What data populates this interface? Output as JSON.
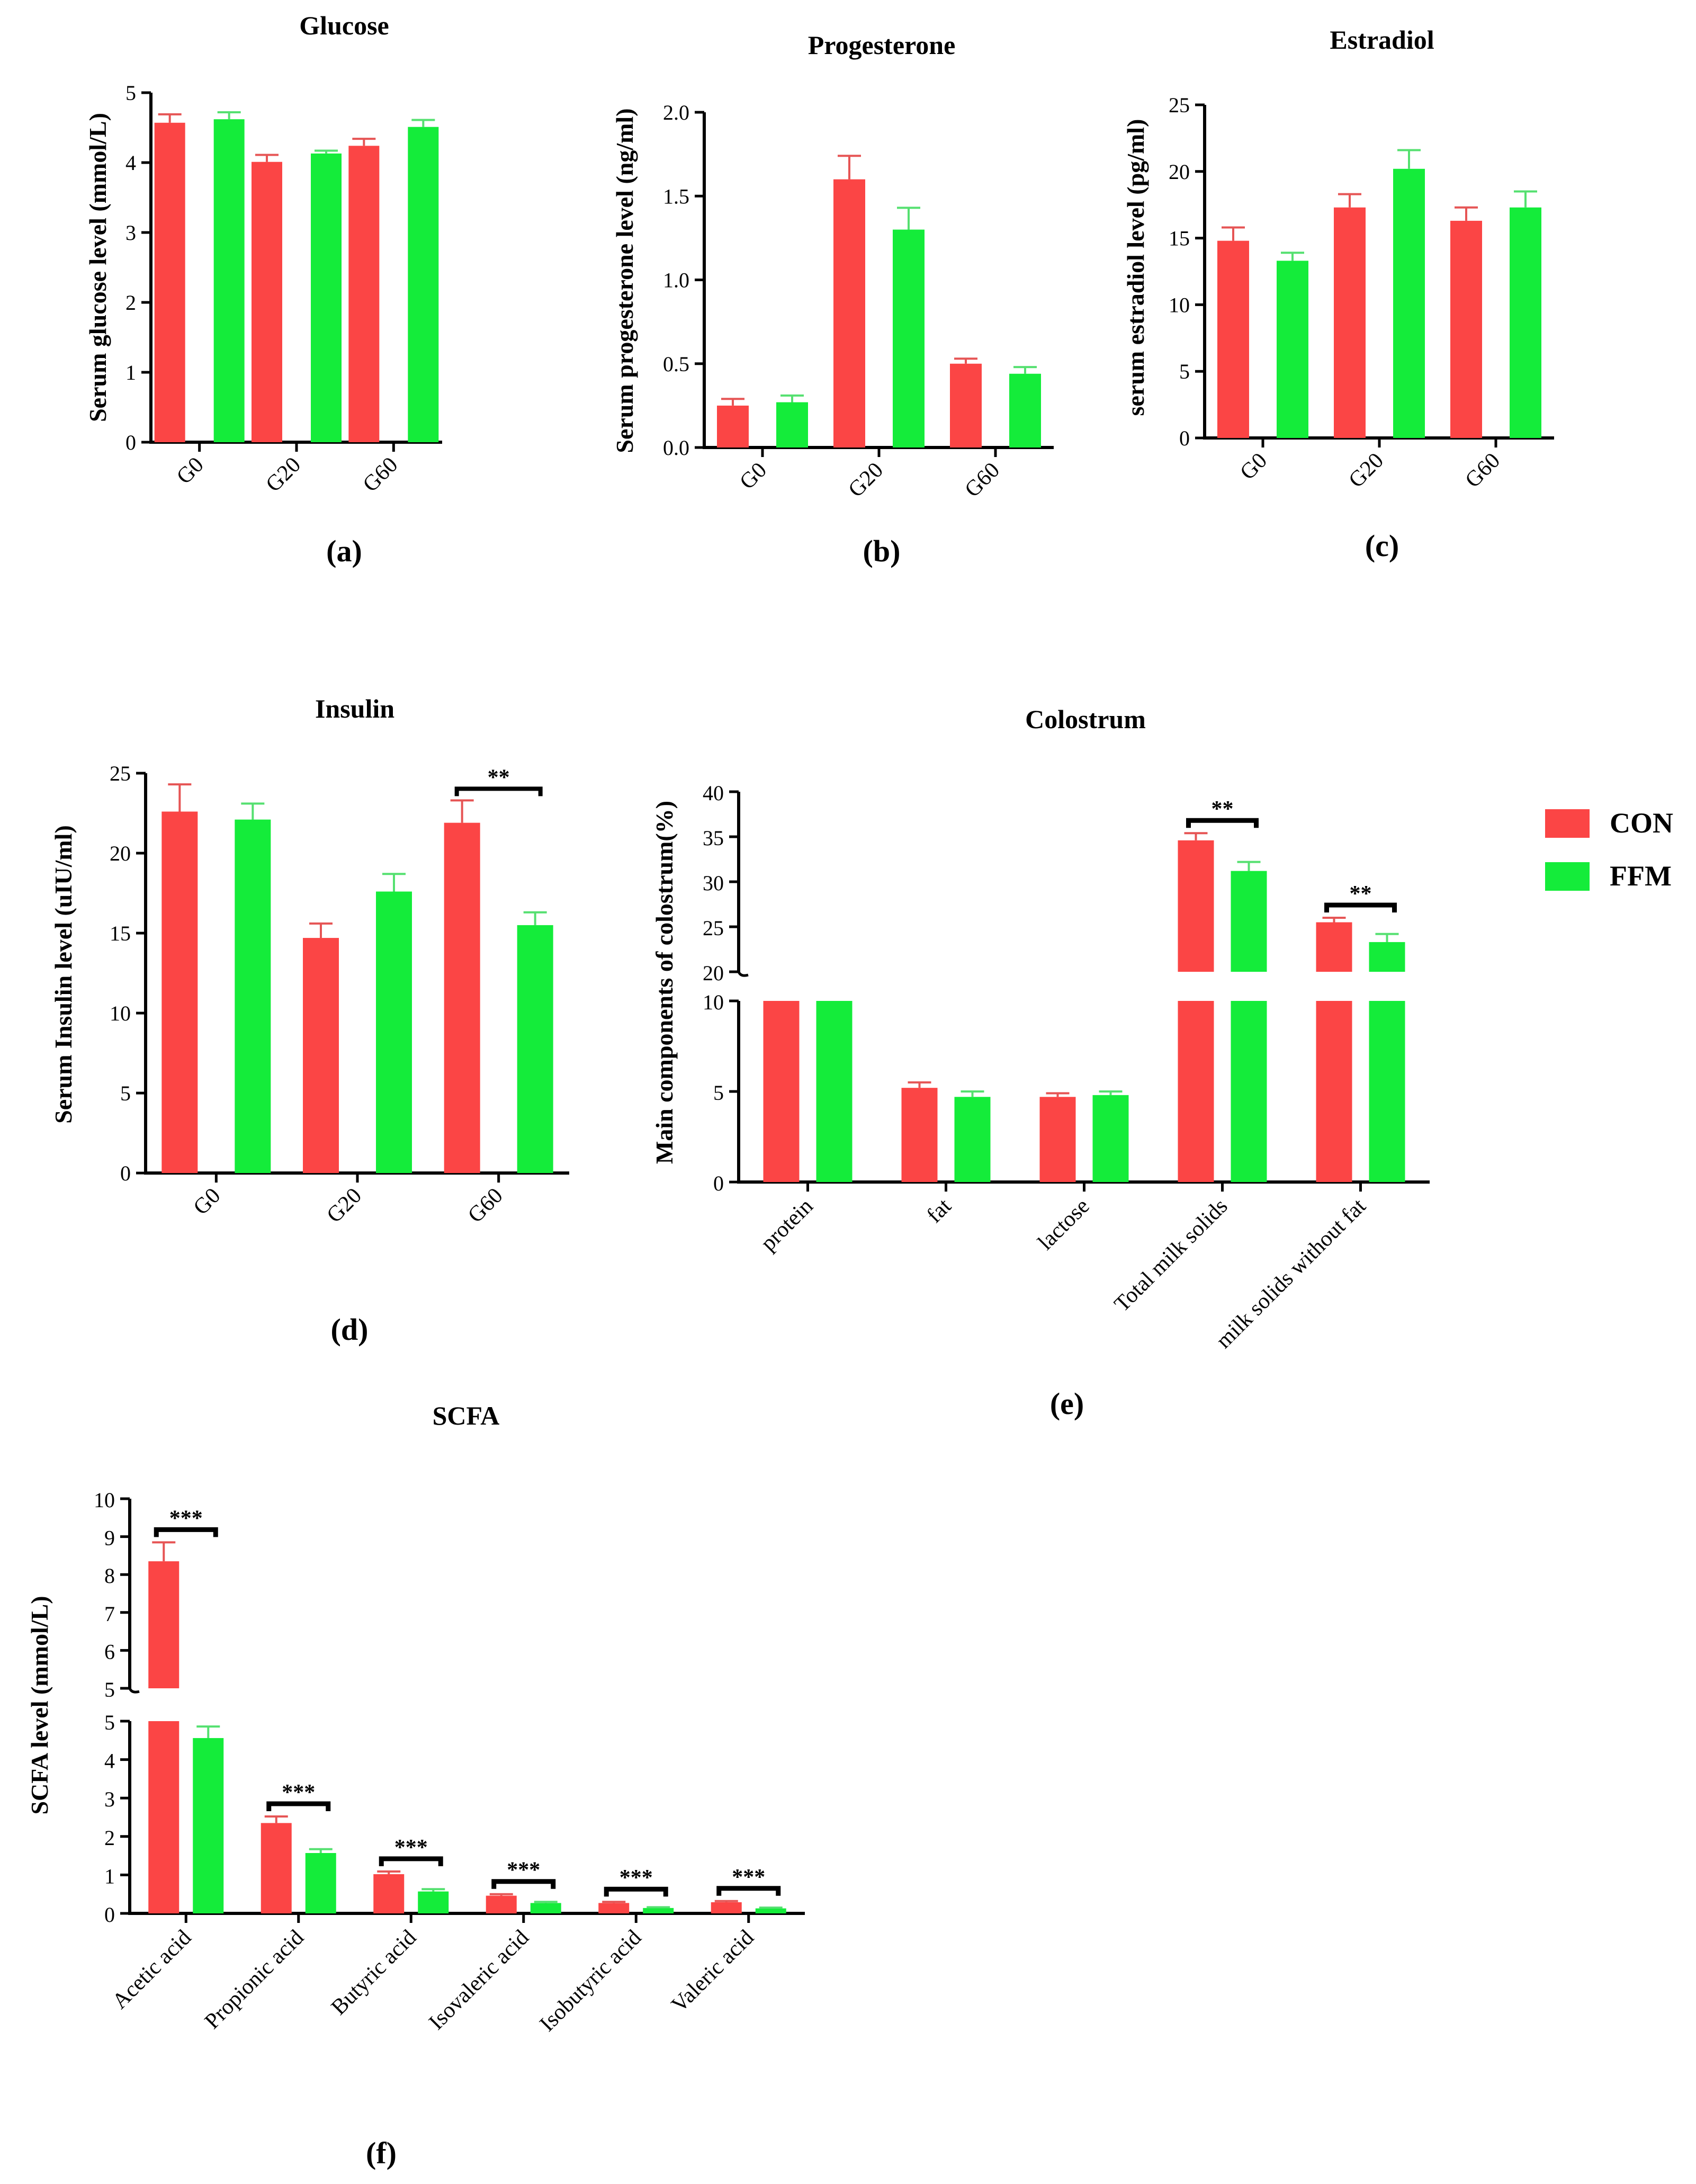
{
  "colors": {
    "con": "#fb4545",
    "ffm": "#14ec3a",
    "con_err": "#e65555",
    "ffm_err": "#55e070",
    "axis": "#000000"
  },
  "legend": [
    {
      "label": "CON"
    },
    {
      "label": "FFM"
    }
  ],
  "chart_data": [
    {
      "id": "a",
      "type": "bar",
      "title": "Glucose",
      "panel_label": "(a)",
      "ylabel": "Serum glucose level (mmol/L)",
      "xlabel": "",
      "categories": [
        "G0",
        "G20",
        "G60"
      ],
      "yticks": [
        "0",
        "1",
        "2",
        "3",
        "4",
        "5"
      ],
      "ylim": [
        0,
        5
      ],
      "series": [
        {
          "name": "CON",
          "values": [
            4.57,
            4.01,
            4.24
          ],
          "errors": [
            0.12,
            0.1,
            0.1
          ]
        },
        {
          "name": "FFM",
          "values": [
            4.62,
            4.13,
            4.51
          ],
          "errors": [
            0.1,
            0.04,
            0.1
          ]
        }
      ],
      "significance": []
    },
    {
      "id": "b",
      "type": "bar",
      "title": "Progesterone",
      "panel_label": "(b)",
      "ylabel": "Serum progesterone level (ng/ml)",
      "xlabel": "",
      "categories": [
        "G0",
        "G20",
        "G60"
      ],
      "yticks": [
        "0.0",
        "0.5",
        "1.0",
        "1.5",
        "2.0"
      ],
      "ylim": [
        0,
        2
      ],
      "series": [
        {
          "name": "CON",
          "values": [
            0.25,
            1.6,
            0.5
          ],
          "errors": [
            0.04,
            0.14,
            0.03
          ]
        },
        {
          "name": "FFM",
          "values": [
            0.27,
            1.3,
            0.44
          ],
          "errors": [
            0.04,
            0.13,
            0.04
          ]
        }
      ],
      "significance": []
    },
    {
      "id": "c",
      "type": "bar",
      "title": "Estradiol",
      "panel_label": "(c)",
      "ylabel": "serum estradiol level (pg/ml)",
      "xlabel": "",
      "categories": [
        "G0",
        "G20",
        "G60"
      ],
      "yticks": [
        "0",
        "5",
        "10",
        "15",
        "20",
        "25"
      ],
      "ylim": [
        0,
        25
      ],
      "series": [
        {
          "name": "CON",
          "values": [
            14.8,
            17.3,
            16.3
          ],
          "errors": [
            1.0,
            1.0,
            1.0
          ]
        },
        {
          "name": "FFM",
          "values": [
            13.3,
            20.2,
            17.3
          ],
          "errors": [
            0.6,
            1.4,
            1.2
          ]
        }
      ],
      "significance": []
    },
    {
      "id": "d",
      "type": "bar",
      "title": "Insulin",
      "panel_label": "(d)",
      "ylabel": "Serum Insulin level (uIU/ml)",
      "xlabel": "",
      "categories": [
        "G0",
        "G20",
        "G60"
      ],
      "yticks": [
        "0",
        "5",
        "10",
        "15",
        "20",
        "25"
      ],
      "ylim": [
        0,
        25
      ],
      "series": [
        {
          "name": "CON",
          "values": [
            22.6,
            14.7,
            21.9
          ],
          "errors": [
            1.7,
            0.9,
            1.4
          ]
        },
        {
          "name": "FFM",
          "values": [
            22.1,
            17.6,
            15.5
          ],
          "errors": [
            1.0,
            1.1,
            0.8
          ]
        }
      ],
      "significance": [
        {
          "category": "G60",
          "label": "**"
        }
      ]
    },
    {
      "id": "e",
      "type": "bar",
      "title": "Colostrum",
      "panel_label": "(e)",
      "ylabel": "Main components of colostrum(%)",
      "xlabel": "",
      "categories": [
        "protein",
        "fat",
        "lactose",
        "Total milk solids",
        "milk solids without fat"
      ],
      "yticks_lower": [
        "0",
        "5",
        "10"
      ],
      "yticks_upper": [
        "20",
        "25",
        "30",
        "35",
        "40"
      ],
      "axis_break": {
        "lower_range": [
          0,
          10
        ],
        "upper_range": [
          20,
          40
        ]
      },
      "series": [
        {
          "name": "CON",
          "values": [
            10,
            5.2,
            4.7,
            34.6,
            25.5
          ],
          "errors": [
            0,
            0.3,
            0.2,
            0.8,
            0.5
          ]
        },
        {
          "name": "FFM",
          "values": [
            10,
            4.7,
            4.8,
            31.2,
            23.3
          ],
          "errors": [
            0,
            0.3,
            0.2,
            1.0,
            0.9
          ]
        }
      ],
      "significance": [
        {
          "category": "Total milk solids",
          "label": "**"
        },
        {
          "category": "milk solids without fat",
          "label": "**"
        }
      ]
    },
    {
      "id": "f",
      "type": "bar",
      "title": "SCFA",
      "panel_label": "(f)",
      "ylabel": "SCFA level (mmol/L)",
      "xlabel": "",
      "categories": [
        "Acetic acid",
        "Propionic acid",
        "Butyric acid",
        "Isovaleric acid",
        "Isobutyric acid",
        "Valeric acid"
      ],
      "yticks_lower": [
        "0",
        "1",
        "2",
        "3",
        "4",
        "5"
      ],
      "yticks_upper": [
        "5",
        "6",
        "7",
        "8",
        "9",
        "10"
      ],
      "axis_break": {
        "lower_range": [
          0,
          5
        ],
        "upper_range": [
          5,
          10
        ]
      },
      "series": [
        {
          "name": "CON",
          "values": [
            8.35,
            2.35,
            1.02,
            0.46,
            0.27,
            0.29
          ],
          "errors": [
            0.5,
            0.17,
            0.07,
            0.04,
            0.03,
            0.03
          ]
        },
        {
          "name": "FFM",
          "values": [
            4.56,
            1.57,
            0.57,
            0.27,
            0.14,
            0.13
          ],
          "errors": [
            0.3,
            0.1,
            0.06,
            0.03,
            0.02,
            0.02
          ]
        }
      ],
      "significance": [
        {
          "category": "Acetic acid",
          "label": "***"
        },
        {
          "category": "Propionic acid",
          "label": "***"
        },
        {
          "category": "Butyric acid",
          "label": "***"
        },
        {
          "category": "Isovaleric acid",
          "label": "***"
        },
        {
          "category": "Isobutyric acid",
          "label": "***"
        },
        {
          "category": "Valeric acid",
          "label": "***"
        }
      ]
    }
  ]
}
